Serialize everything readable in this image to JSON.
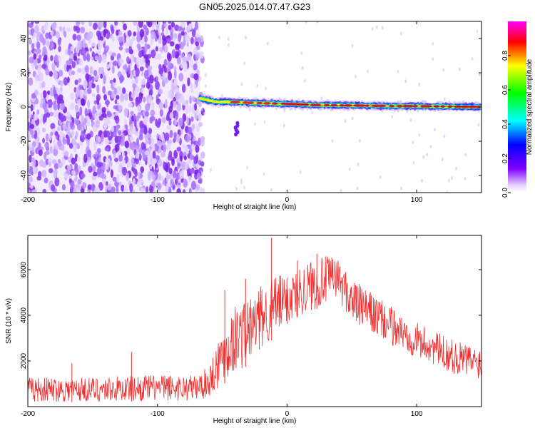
{
  "figure": {
    "title": "GN05.2025.014.07.47.G23"
  },
  "chart_data": [
    {
      "type": "heatmap",
      "xlabel": "Height of straight line (km)",
      "ylabel": "Frequency (Hz)",
      "xlim": [
        -200,
        150
      ],
      "ylim": [
        -50,
        50
      ],
      "xticks": [
        "-200",
        "-100",
        "0",
        "100"
      ],
      "yticks": [
        "40",
        "20",
        "0",
        "-20",
        "-40"
      ],
      "colorbar": {
        "label": "Normalized spectral amplitude",
        "range": [
          0,
          1
        ],
        "ticks": [
          "0.0",
          "0.2",
          "0.4",
          "0.6",
          "0.8"
        ],
        "colors": [
          "#ffffff",
          "#8000ff",
          "#0000ff",
          "#00ffff",
          "#00ff00",
          "#ffff00",
          "#ff0000",
          "#ff00ff"
        ]
      },
      "features": {
        "noise_region_x": [
          -200,
          -67
        ],
        "signal_start_x": -67,
        "signal_track": [
          [
            -67,
            5
          ],
          [
            -55,
            3
          ],
          [
            -45,
            3
          ],
          [
            -30,
            2.5
          ],
          [
            -10,
            2
          ],
          [
            0,
            1.8
          ],
          [
            20,
            1.2
          ],
          [
            40,
            1
          ],
          [
            60,
            0.8
          ],
          [
            80,
            0.5
          ],
          [
            100,
            0.5
          ],
          [
            120,
            0.3
          ],
          [
            150,
            0
          ]
        ],
        "side_blob": {
          "x": -39,
          "y": -14
        }
      }
    },
    {
      "type": "line",
      "xlabel": "Height of straight line (km)",
      "ylabel": "SNR (10 * v/v)",
      "xlim": [
        -200,
        150
      ],
      "ylim": [
        0,
        7500
      ],
      "xticks": [
        "-200",
        "-100",
        "0",
        "100"
      ],
      "yticks": [
        "6000",
        "4000",
        "2000"
      ],
      "series": [
        {
          "color": "#f03030",
          "envelope": {
            "x": [
              -200,
              -150,
              -100,
              -70,
              -60,
              -55,
              -50,
              -40,
              -30,
              -20,
              -10,
              0,
              10,
              20,
              30,
              38,
              50,
              70,
              90,
              110,
              130,
              150
            ],
            "low": [
              200,
              200,
              250,
              250,
              400,
              700,
              900,
              1500,
              1800,
              2500,
              3000,
              3500,
              4000,
              4200,
              4500,
              4800,
              3700,
              3000,
              2400,
              1900,
              1400,
              1200
            ],
            "high": [
              1300,
              1300,
              1400,
              1400,
              1800,
              2800,
              3500,
              4500,
              4800,
              5300,
              5800,
              5800,
              6200,
              6500,
              6600,
              6600,
              5600,
              4800,
              4000,
              3400,
              2900,
              2600
            ]
          },
          "spikes": [
            [
              -12,
              7400
            ],
            [
              -32,
              5600
            ],
            [
              -48,
              5100
            ],
            [
              -120,
              2400
            ],
            [
              8,
              6400
            ],
            [
              23,
              6700
            ],
            [
              -166,
              1900
            ]
          ]
        }
      ]
    }
  ]
}
